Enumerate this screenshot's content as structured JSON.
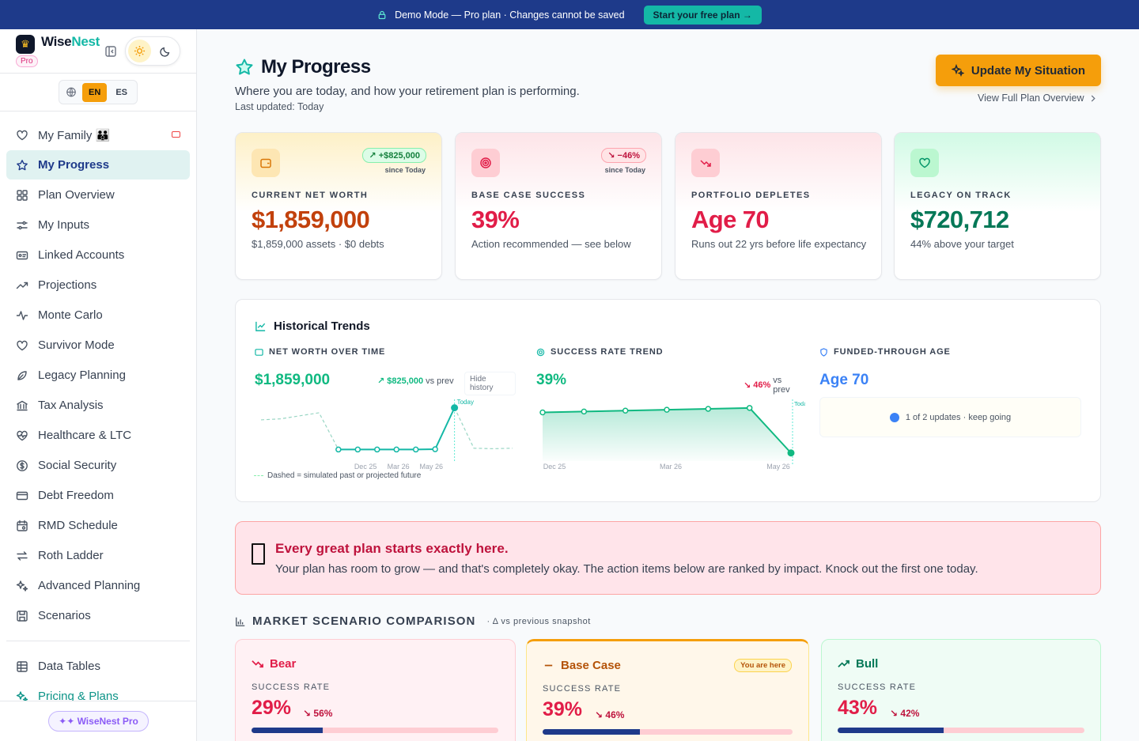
{
  "banner": {
    "text": "Demo Mode — Pro plan · Changes cannot be saved",
    "cta": "Start your free plan →"
  },
  "sidebar": {
    "brand_a": "Wise",
    "brand_b": "Nest",
    "plan_badge": "Pro",
    "lang": {
      "en": "EN",
      "es": "ES"
    },
    "items": [
      {
        "label": "My Family 👪",
        "icon": "heart-icon"
      },
      {
        "label": "My Progress",
        "icon": "star-icon",
        "active": true
      },
      {
        "label": "Plan Overview",
        "icon": "grid-icon"
      },
      {
        "label": "My Inputs",
        "icon": "sliders-icon"
      },
      {
        "label": "Linked Accounts",
        "icon": "account-card-icon"
      },
      {
        "label": "Projections",
        "icon": "trend-up-icon"
      },
      {
        "label": "Monte Carlo",
        "icon": "activity-icon"
      },
      {
        "label": "Survivor Mode",
        "icon": "heart-icon"
      },
      {
        "label": "Legacy Planning",
        "icon": "leaf-icon"
      },
      {
        "label": "Tax Analysis",
        "icon": "bank-icon"
      },
      {
        "label": "Healthcare & LTC",
        "icon": "heart-pulse-icon"
      },
      {
        "label": "Social Security",
        "icon": "dollar-circle-icon"
      },
      {
        "label": "Debt Freedom",
        "icon": "credit-card-icon"
      },
      {
        "label": "RMD Schedule",
        "icon": "calendar-icon"
      },
      {
        "label": "Roth Ladder",
        "icon": "arrows-icon"
      },
      {
        "label": "Advanced Planning",
        "icon": "sparkles-icon"
      },
      {
        "label": "Scenarios",
        "icon": "save-icon"
      }
    ],
    "items2": [
      {
        "label": "Data Tables",
        "icon": "table-icon"
      },
      {
        "label": "Pricing & Plans",
        "icon": "sparkles-icon"
      }
    ],
    "pro_pill": "✦✦ WiseNest Pro"
  },
  "header": {
    "title": "My Progress",
    "subtitle": "Where you are today, and how your retirement plan is performing.",
    "updated": "Last updated: Today",
    "update_btn": "Update My Situation",
    "overview_link": "View Full Plan Overview"
  },
  "kpis": [
    {
      "label": "CURRENT NET WORTH",
      "value": "$1,859,000",
      "note": "$1,859,000 assets · $0 debts",
      "delta": "↗ +$825,000",
      "since": "since Today",
      "color": "#c2410c",
      "icon": "wallet-icon"
    },
    {
      "label": "BASE CASE SUCCESS",
      "value": "39%",
      "note": "Action recommended — see below",
      "delta": "↘ −46%",
      "since": "since Today",
      "color": "#e11d48",
      "icon": "target-icon"
    },
    {
      "label": "PORTFOLIO DEPLETES",
      "value": "Age 70",
      "note": "Runs out 22 yrs before life expectancy",
      "color": "#e11d48",
      "icon": "trend-down-icon"
    },
    {
      "label": "LEGACY ON TRACK",
      "value": "$720,712",
      "note": "44% above your target",
      "color": "#047857",
      "icon": "heart-icon"
    }
  ],
  "trends": {
    "title": "Historical Trends",
    "net_worth": {
      "label": "NET WORTH OVER TIME",
      "value": "$1,859,000",
      "delta": "$825,000",
      "vs": "vs prev",
      "hide": "Hide history",
      "today": "Today",
      "ticks": [
        "Dec 25",
        "Mar 26",
        "May 26"
      ]
    },
    "success": {
      "label": "SUCCESS RATE TREND",
      "value": "39%",
      "delta": "46%",
      "vs": "vs prev",
      "today": "Today",
      "ticks": [
        "Dec 25",
        "Mar 26",
        "May 26"
      ]
    },
    "funded": {
      "label": "FUNDED-THROUGH AGE",
      "value": "Age 70",
      "note": "1 of 2 updates · keep going"
    },
    "legend": "Dashed = simulated past or projected future"
  },
  "chart_data": [
    {
      "type": "line",
      "title": "NET WORTH OVER TIME",
      "x_ticks": [
        "Dec 25",
        "Mar 26",
        "May 26"
      ],
      "series": [
        {
          "values": [
            1620000,
            1640000,
            1700000,
            1760000,
            1034000,
            1034000,
            1034000,
            1034000,
            1034000,
            1040000,
            1859000,
            1060000,
            1050000,
            1060000
          ]
        }
      ]
    },
    {
      "type": "area",
      "title": "SUCCESS RATE TREND",
      "x_ticks": [
        "Dec 25",
        "Mar 26",
        "May 26"
      ],
      "unit": "%",
      "series": [
        {
          "values": [
            84,
            85,
            86,
            87,
            88,
            89,
            39
          ]
        }
      ]
    }
  ],
  "encourage": {
    "title": "Every great plan starts exactly here.",
    "text": "Your plan has room to grow — and that's completely okay. The action items below are ranked by impact. Knock out the first one today."
  },
  "market": {
    "title": "MARKET SCENARIO COMPARISON",
    "sub": "· Δ vs previous snapshot",
    "scenarios": [
      {
        "name": "Bear",
        "label": "SUCCESS RATE",
        "value": "29%",
        "change": "↘ 56%",
        "fill": 0.29,
        "icon": "trend-down-icon"
      },
      {
        "name": "Base Case",
        "label": "SUCCESS RATE",
        "value": "39%",
        "change": "↘ 46%",
        "fill": 0.39,
        "badge": "You are here",
        "icon": "minus-icon"
      },
      {
        "name": "Bull",
        "label": "SUCCESS RATE",
        "value": "43%",
        "change": "↘ 42%",
        "fill": 0.43,
        "icon": "trend-up-icon"
      }
    ]
  }
}
